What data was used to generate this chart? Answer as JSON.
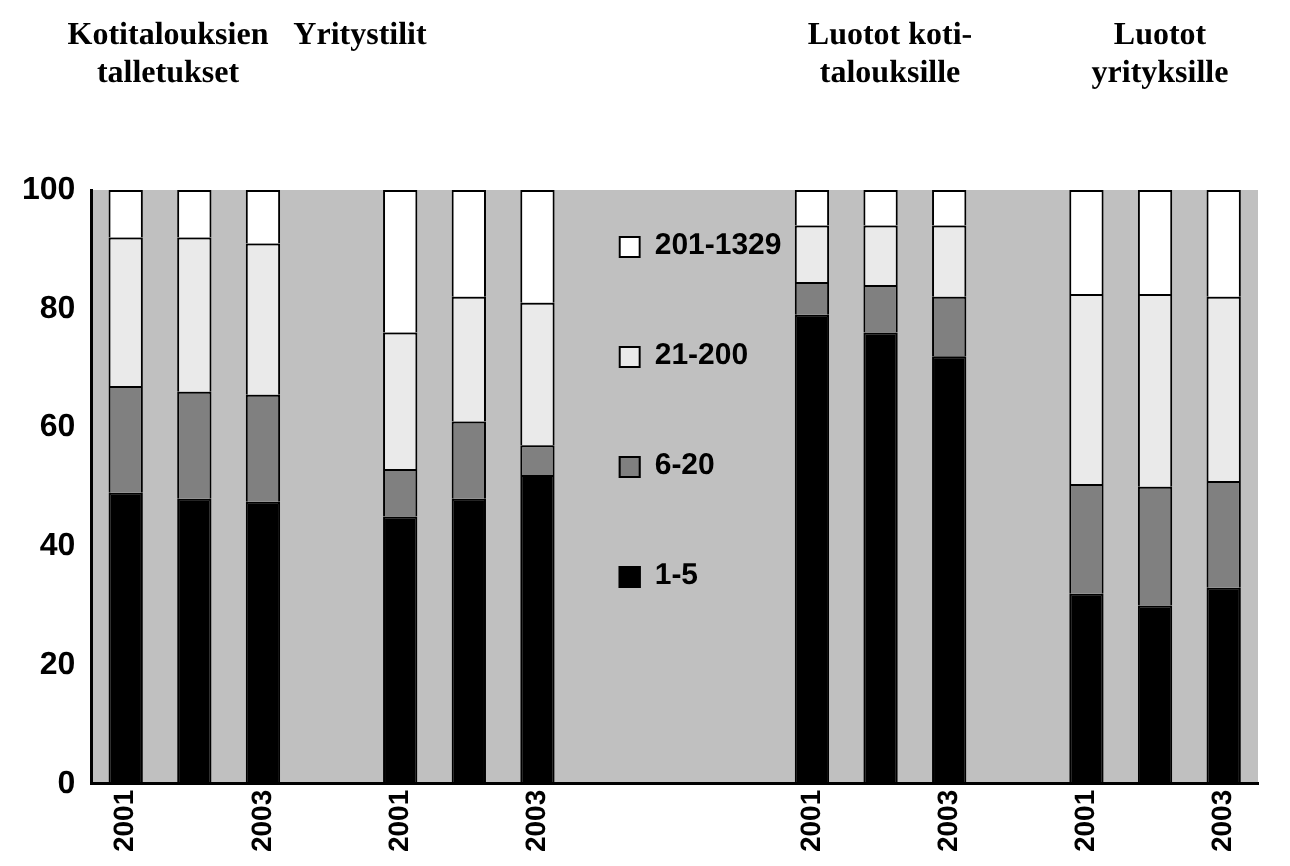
{
  "chart_data": {
    "type": "bar",
    "stacked": true,
    "categories": [
      "2001",
      null,
      "2003",
      null,
      "2001",
      null,
      "2003",
      null,
      null,
      null,
      "2001",
      null,
      "2003",
      null,
      "2001",
      null,
      "2003"
    ],
    "series": [
      {
        "name": "1-5",
        "color": "#000000",
        "values": [
          49,
          48,
          47.5,
          null,
          45,
          48,
          52,
          null,
          null,
          null,
          79,
          76,
          72,
          null,
          32,
          30,
          33
        ]
      },
      {
        "name": "6-20",
        "color": "#808080",
        "values": [
          18,
          18,
          18,
          null,
          8,
          13,
          5,
          null,
          null,
          null,
          5.5,
          8,
          10,
          null,
          18.5,
          20,
          18
        ]
      },
      {
        "name": "21-200",
        "color": "#eaeaea",
        "values": [
          25,
          26,
          25.5,
          null,
          23,
          21,
          24,
          null,
          null,
          null,
          9.5,
          10,
          12,
          null,
          32,
          32.5,
          31
        ]
      },
      {
        "name": "201-1329",
        "color": "#ffffff",
        "values": [
          8,
          8,
          9,
          null,
          24,
          18,
          19,
          null,
          null,
          null,
          6,
          6,
          6,
          null,
          17.5,
          17.5,
          18
        ]
      }
    ],
    "ylim": [
      0,
      100
    ],
    "yticks": [
      0,
      20,
      40,
      60,
      80,
      100
    ],
    "grid": false,
    "legend": "center",
    "annotations": [
      "Kotitalouksien\ntalletukset",
      "Yritystilit",
      "Luotot koti-\ntalouksille",
      "Luotot\nyrityksille"
    ]
  }
}
